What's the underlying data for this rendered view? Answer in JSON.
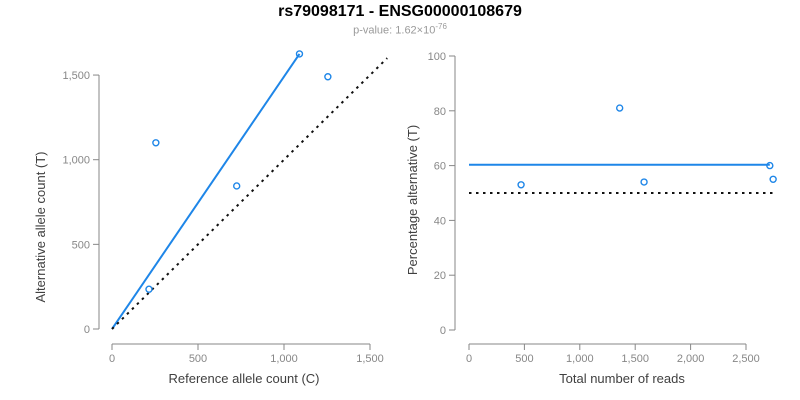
{
  "header": {
    "title": "rs79098171 - ENSG00000108679",
    "pvalue_prefix": "p-value: 1.62×10",
    "pvalue_exponent": "-76"
  },
  "colors": {
    "accent_blue": "#1e86e8",
    "axis_gray": "#878787",
    "label_dark": "#404040",
    "line_black": "#111111"
  },
  "chart_data": [
    {
      "type": "scatter",
      "xlabel": "Reference allele count (C)",
      "ylabel": "Alternative allele count (T)",
      "xlim": [
        0,
        1500
      ],
      "ylim": [
        0,
        1500
      ],
      "grid": false,
      "xtick_values": [
        0,
        500,
        1000,
        1500
      ],
      "xtick_labels": [
        "0",
        "500",
        "1,000",
        "1,500"
      ],
      "ytick_values": [
        0,
        500,
        1000,
        1500
      ],
      "ytick_labels": [
        "0",
        "500",
        "1,000",
        "1,500"
      ],
      "points": [
        [
          215,
          235
        ],
        [
          255,
          1100
        ],
        [
          725,
          845
        ],
        [
          1090,
          1625
        ],
        [
          1255,
          1490
        ]
      ],
      "lines": [
        {
          "name": "fit-line",
          "style": "solid",
          "color": "accent_blue",
          "x1": 0,
          "y1": 0,
          "x2": 1090,
          "y2": 1625
        },
        {
          "name": "identity-line",
          "style": "dotted",
          "color": "line_black",
          "x1": 0,
          "y1": 0,
          "x2": 1600,
          "y2": 1600
        }
      ]
    },
    {
      "type": "scatter",
      "xlabel": "Total number of reads",
      "ylabel": "Percentage alternative (T)",
      "xlim": [
        0,
        2800
      ],
      "ylim": [
        0,
        100
      ],
      "grid": false,
      "xtick_values": [
        0,
        500,
        1000,
        1500,
        2000,
        2500
      ],
      "xtick_labels": [
        "0",
        "500",
        "1,000",
        "1,500",
        "2,000",
        "2,500"
      ],
      "ytick_values": [
        0,
        20,
        40,
        60,
        80,
        100
      ],
      "ytick_labels": [
        "0",
        "20",
        "40",
        "60",
        "80",
        "100"
      ],
      "points": [
        [
          470,
          53
        ],
        [
          1360,
          81
        ],
        [
          1580,
          54
        ],
        [
          2715,
          60
        ],
        [
          2745,
          55
        ]
      ],
      "lines": [
        {
          "name": "fit-line",
          "style": "solid",
          "color": "accent_blue",
          "x1": 0,
          "y1": 60.3,
          "x2": 2715,
          "y2": 60.3
        },
        {
          "name": "null-line",
          "style": "dotted",
          "color": "line_black",
          "x1": 0,
          "y1": 50,
          "x2": 2745,
          "y2": 50
        }
      ]
    }
  ]
}
